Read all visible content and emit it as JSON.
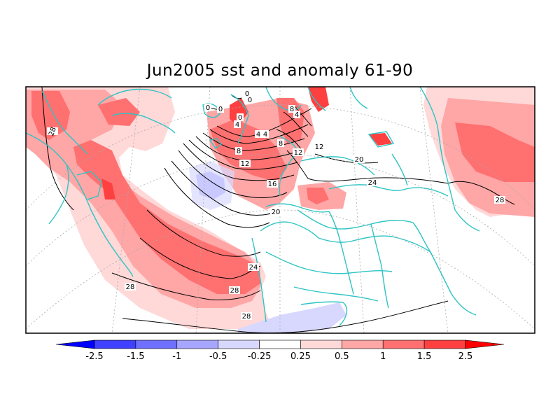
{
  "title": "Jun2005 sst and anomaly 61-90",
  "colors": {
    "coast": "#2ec4c4",
    "contour": "#000000",
    "frame": "#000000"
  },
  "contour_labels": [
    {
      "text": "0"
    },
    {
      "text": "0"
    },
    {
      "text": "0"
    },
    {
      "text": "0"
    },
    {
      "text": "0"
    },
    {
      "text": "4"
    },
    {
      "text": "4"
    },
    {
      "text": "4"
    },
    {
      "text": "4"
    },
    {
      "text": "8"
    },
    {
      "text": "8"
    },
    {
      "text": "8"
    },
    {
      "text": "12"
    },
    {
      "text": "12"
    },
    {
      "text": "12"
    },
    {
      "text": "16"
    },
    {
      "text": "20"
    },
    {
      "text": "20"
    },
    {
      "text": "24"
    },
    {
      "text": "24"
    },
    {
      "text": "28"
    },
    {
      "text": "28"
    },
    {
      "text": "28"
    },
    {
      "text": "28"
    },
    {
      "text": "28"
    }
  ],
  "colorbar": {
    "colors": [
      "#0000ff",
      "#4040ff",
      "#7070ff",
      "#a6a6ff",
      "#d8d8ff",
      "#ffffff",
      "#ffd8d8",
      "#ffa6a6",
      "#ff7070",
      "#ff4040",
      "#ff0000"
    ],
    "labels": [
      "-2.5",
      "-1.5",
      "-1",
      "-0.5",
      "-0.25",
      "0.25",
      "0.5",
      "1",
      "1.5",
      "2.5"
    ]
  }
}
